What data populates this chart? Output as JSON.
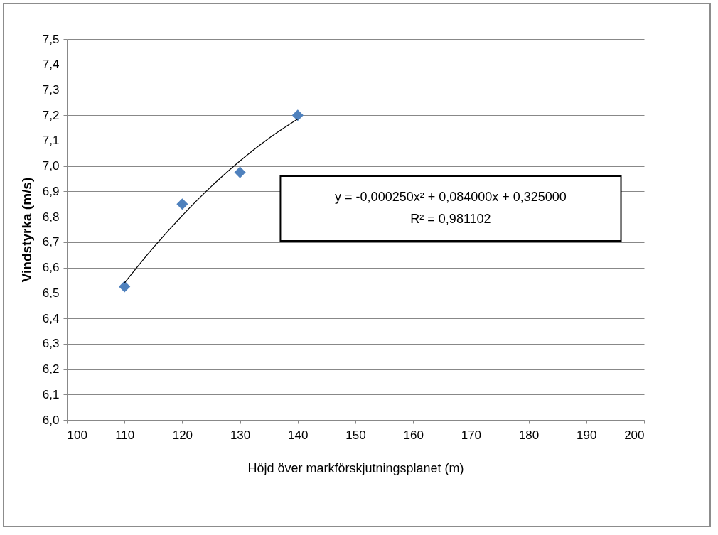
{
  "chart_data": {
    "type": "scatter",
    "xlabel": "Höjd över markförskjutningsplanet (m)",
    "ylabel": "Vindstyrka (m/s)",
    "xlim": [
      100,
      200
    ],
    "xticks": [
      100,
      110,
      120,
      130,
      140,
      150,
      160,
      170,
      180,
      190,
      200
    ],
    "ylim": [
      6.0,
      7.5
    ],
    "yticks": [
      {
        "value": 6.0,
        "label": "6,0"
      },
      {
        "value": 6.1,
        "label": "6,1"
      },
      {
        "value": 6.2,
        "label": "6,2"
      },
      {
        "value": 6.3,
        "label": "6,3"
      },
      {
        "value": 6.4,
        "label": "6,4"
      },
      {
        "value": 6.5,
        "label": "6,5"
      },
      {
        "value": 6.6,
        "label": "6,6"
      },
      {
        "value": 6.7,
        "label": "6,7"
      },
      {
        "value": 6.8,
        "label": "6,8"
      },
      {
        "value": 6.9,
        "label": "6,9"
      },
      {
        "value": 7.0,
        "label": "7,0"
      },
      {
        "value": 7.1,
        "label": "7,1"
      },
      {
        "value": 7.2,
        "label": "7,2"
      },
      {
        "value": 7.3,
        "label": "7,3"
      },
      {
        "value": 7.4,
        "label": "7,4"
      },
      {
        "value": 7.5,
        "label": "7,5"
      }
    ],
    "grid": "y",
    "marker": "diamond",
    "annotations": [
      "y = -0,000250x² + 0,084000x + 0,325000",
      "R² = 0,981102"
    ],
    "series": [
      {
        "color": "#4f81bd",
        "x": [
          110,
          120,
          130,
          140
        ],
        "values": [
          6.525,
          6.85,
          6.975,
          7.2
        ]
      },
      {
        "type": "line",
        "color": "#000000",
        "marker": "none",
        "x": [
          110,
          115,
          120,
          125,
          130,
          135,
          140
        ],
        "values": [
          6.54,
          6.679,
          6.805,
          6.919,
          7.02,
          7.109,
          7.185
        ]
      }
    ]
  }
}
